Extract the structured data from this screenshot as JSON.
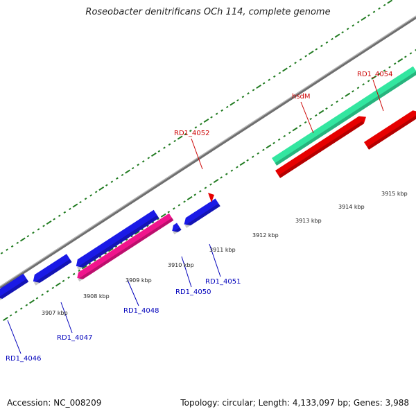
{
  "title": "Roseobacter denitrificans OCh 114, complete genome",
  "footer": {
    "accession": "Accession: NC_008209",
    "stats": "Topology: circular; Length: 4,133,097 bp; Genes: 3,988"
  },
  "colors": {
    "background": "#ffffff",
    "backbone": "#8c8c8c",
    "tick": "#1f7a1f",
    "forward_label": "#cc0000",
    "reverse_label": "#0000bb",
    "gene_blue": "#1a1ae6",
    "gene_red": "#e60000",
    "gene_green": "#33e6a0",
    "gene_pink": "#f0148c"
  },
  "genes": [
    {
      "label": "RD1_4046",
      "strand": "reverse",
      "color": "gene_blue"
    },
    {
      "label": "RD1_4047",
      "strand": "reverse",
      "color": "gene_blue"
    },
    {
      "label": "RD1_4048",
      "strand": "reverse",
      "color": "gene_pink"
    },
    {
      "label": "RD1_4050",
      "strand": "reverse",
      "color": "gene_blue"
    },
    {
      "label": "RD1_4051",
      "strand": "reverse",
      "color": "gene_blue"
    },
    {
      "label": "RD1_4052",
      "strand": "forward",
      "color": "gene_red"
    },
    {
      "label": "hsdM",
      "strand": "forward",
      "color": "gene_green"
    },
    {
      "label": "RD1_4054",
      "strand": "forward",
      "color": "gene_red"
    }
  ],
  "scale_labels": [
    "3907 kbp",
    "3908 kbp",
    "3909 kbp",
    "3910 kbp",
    "3911 kbp",
    "3912 kbp",
    "3913 kbp",
    "3914 kbp",
    "3915 kbp"
  ]
}
